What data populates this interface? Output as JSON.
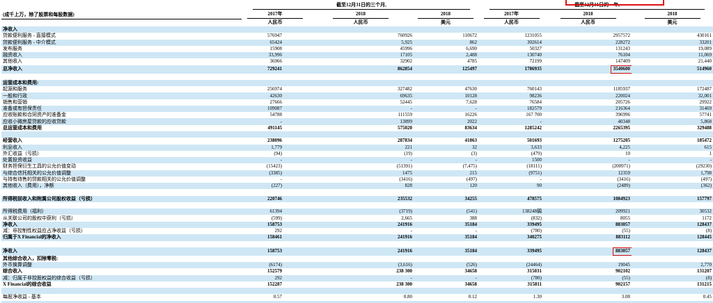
{
  "meta": {
    "units_note": "(成千上万，除了股票和每股数据)",
    "company": "X Financial",
    "colors": {
      "stripe_blue": "#cfe7f5",
      "highlight_red": "#cf0a0a"
    }
  },
  "header": {
    "groups": [
      {
        "title": "截至12月31日的三个月,",
        "cols": [
          {
            "year": "2017年",
            "currency": "人民币"
          },
          {
            "year": "2018",
            "currency": "人民币"
          },
          {
            "year": "2018",
            "currency": "美元"
          }
        ]
      },
      {
        "title": "截至12月31日的一年,",
        "cols": [
          {
            "year": "2017年",
            "currency": "人民币"
          },
          {
            "year": "2018",
            "currency": "人民币"
          },
          {
            "year": "2018",
            "currency": "美元"
          }
        ]
      }
    ]
  },
  "rows": [
    {
      "type": "section",
      "bold": true,
      "label": "净收入"
    },
    {
      "type": "data",
      "label": "贷款便利服务 - 直接模式",
      "values": [
        "576947",
        "760926",
        "110672",
        "1231055",
        "2957572",
        "430161"
      ]
    },
    {
      "type": "data",
      "label": "贷款便利服务 - 中介模式",
      "values": [
        "65424",
        "5,925",
        "862",
        "302614",
        "228272",
        "33201"
      ]
    },
    {
      "type": "data",
      "label": "发布服务",
      "values": [
        "15908",
        "45996",
        "6,690",
        "50327",
        "131243",
        "19,089"
      ]
    },
    {
      "type": "data",
      "label": "融资收入",
      "values": [
        "33,996",
        "17105",
        "2,488",
        "130740",
        "76104",
        "11,069"
      ]
    },
    {
      "type": "data",
      "label": "其他收入",
      "values": [
        "36966",
        "32902",
        "4785",
        "72199",
        "147409",
        "21,440"
      ]
    },
    {
      "type": "data",
      "bold": true,
      "label": "总净收入",
      "values": [
        "729241",
        "862854",
        "125497",
        "1786935",
        "3540600",
        "514960"
      ],
      "hl": 4
    },
    {
      "type": "blank"
    },
    {
      "type": "section",
      "bold": true,
      "label": "运营成本和费用:"
    },
    {
      "type": "data",
      "label": "起源和服务",
      "values": [
        "256974",
        "327482",
        "47630",
        "760143",
        "1185937",
        "172487"
      ]
    },
    {
      "type": "data",
      "label": "一般和行政",
      "values": [
        "42630",
        "69635",
        "10128",
        "98236",
        "220024",
        "32,001"
      ]
    },
    {
      "type": "data",
      "label": "销售和营销",
      "values": [
        "27666",
        "52445",
        "7,628",
        "76584",
        "205726",
        "29922"
      ]
    },
    {
      "type": "data",
      "label": "准备或有担保责任",
      "values": [
        "109087",
        "-",
        "-",
        "182579",
        "216364",
        "31469"
      ]
    },
    {
      "type": "data",
      "label": "应收账款和合同资产的准备金",
      "values": [
        "54788",
        "111559",
        "16226",
        "167 700",
        "396996",
        "57741"
      ]
    },
    {
      "type": "data",
      "label": "应收小微房屋贷款的应收贷款",
      "values": [
        "-",
        "13899",
        "2022",
        "-",
        "40348",
        "5,868"
      ]
    },
    {
      "type": "data",
      "bold": true,
      "label": "总运营成本和费用",
      "values": [
        "491145",
        "575020",
        "83634",
        "1285242",
        "2265395",
        "329488"
      ]
    },
    {
      "type": "blank"
    },
    {
      "type": "data",
      "bold": true,
      "label": "经营收入",
      "values": [
        "238096",
        "287834",
        "41863",
        "501693",
        "1275205",
        "185472"
      ]
    },
    {
      "type": "data",
      "label": "利息收入",
      "values": [
        "1,779",
        "221",
        "32",
        "3,633",
        "4,225",
        "615"
      ]
    },
    {
      "type": "data",
      "label": "外汇收益（亏损）",
      "values": [
        "(94)",
        "(19)",
        "(3)",
        "(479)",
        "10",
        "1"
      ]
    },
    {
      "type": "data",
      "label": "处置投资收益",
      "values": [
        "-",
        "-",
        "-",
        "1500",
        "-",
        "-"
      ]
    },
    {
      "type": "data",
      "label": "财务担保衍生工具的公允价值变动",
      "values": [
        "(15423)",
        "(51391)",
        "(7,475)",
        "(18111)",
        "(200971)",
        "(29230)"
      ]
    },
    {
      "type": "data",
      "label": "与综合信托相关的公允价值调整",
      "values": [
        "(3385)",
        "1475",
        "215",
        "(9751)",
        "12359",
        "1,798"
      ]
    },
    {
      "type": "data",
      "label": "与持有待售的贷款相关的公允价值调整",
      "values": [
        "-",
        "(3416)",
        "(497)",
        "-",
        "(3416)",
        "(497)"
      ]
    },
    {
      "type": "data",
      "label": "其他收入（费用），净额",
      "values": [
        "(227)",
        "828",
        "120",
        "90",
        "(2489)",
        "(362)"
      ]
    },
    {
      "type": "blank"
    },
    {
      "type": "data",
      "bold": true,
      "label": "所得税前收入和附属公司股权收益（亏损）",
      "values": [
        "220746",
        "235532",
        "34255",
        "478575",
        "1084923",
        "157797"
      ]
    },
    {
      "type": "blank"
    },
    {
      "type": "data",
      "label": "所得税费用（福利）",
      "values": [
        "61394",
        "(3719)",
        "(541)",
        "138248碉",
        "209921",
        "30532"
      ]
    },
    {
      "type": "data",
      "label": "从关联公司的股权中获利（亏损）",
      "values": [
        "(599)",
        "2,665",
        "388",
        "(832)",
        "8055",
        "1172"
      ]
    },
    {
      "type": "data",
      "bold": true,
      "label": "净收入",
      "values": [
        "158753",
        "241916",
        "35184",
        "339495",
        "883057",
        "128437"
      ]
    },
    {
      "type": "data",
      "label": "减：非控制性权益应占净收益（亏损）",
      "values": [
        "292",
        "-",
        "-",
        "(780)",
        "(55)",
        "(8)"
      ]
    },
    {
      "type": "data",
      "bold": true,
      "label": "归属于X Financial的净收入",
      "values": [
        "158461",
        "241916",
        "35184",
        "340275",
        "883112",
        "128445"
      ]
    },
    {
      "type": "blank"
    },
    {
      "type": "data",
      "bold": true,
      "label": "净收入",
      "values": [
        "158753",
        "241916",
        "35184",
        "339495",
        "883057",
        "128437"
      ],
      "hl": 4
    },
    {
      "type": "section",
      "bold": true,
      "label": "其他综合收入，扣除零税:"
    },
    {
      "type": "data",
      "label": "外币换算调整",
      "values": [
        "(6174)",
        "(3,616)",
        "(526)",
        "(24464)",
        "19045",
        "2,770"
      ]
    },
    {
      "type": "data",
      "bold": true,
      "label": "综合收入",
      "values": [
        "152579",
        "238 300",
        "34658",
        "315031",
        "902102",
        "131207"
      ]
    },
    {
      "type": "data",
      "label": "减：归属于非控股权益的综合收益（亏损）",
      "values": [
        "292",
        "-",
        "-",
        "(780)",
        "(55)",
        "(8)"
      ]
    },
    {
      "type": "data",
      "bold": true,
      "label": "X Financial的综合收益",
      "values": [
        "152287",
        "238 300",
        "34658",
        "315811",
        "902157",
        "131215"
      ]
    },
    {
      "type": "blank"
    },
    {
      "type": "data",
      "label": "每股净收益 - 基本",
      "values": [
        "0.57",
        "0.80",
        "0.12",
        "1.30",
        "3.08",
        "0.45"
      ]
    },
    {
      "type": "blank"
    }
  ]
}
